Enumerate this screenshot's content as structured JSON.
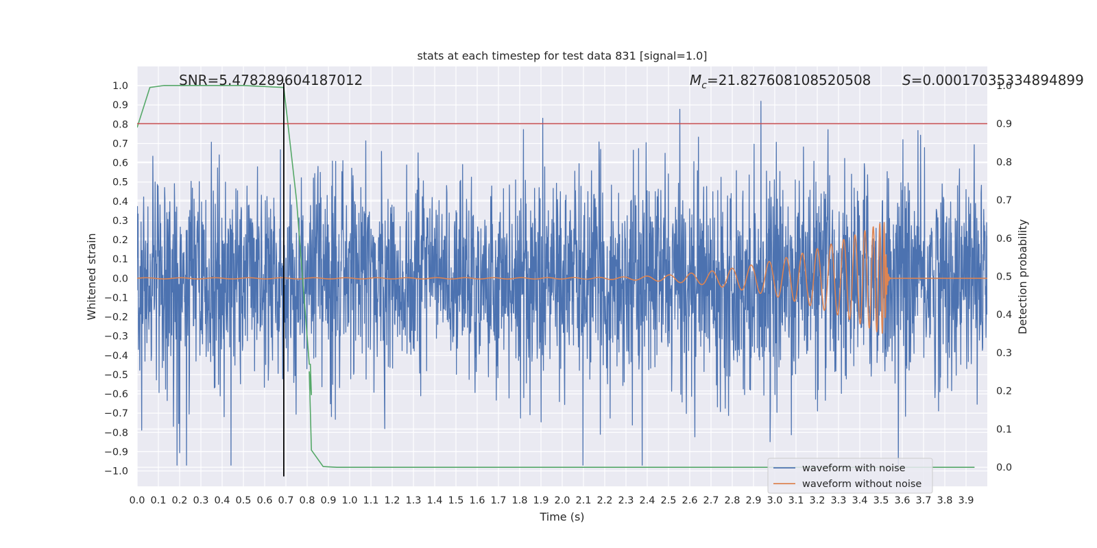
{
  "chart_data": {
    "type": "line",
    "title": "stats at each timestep for test data 831 [signal=1.0]",
    "xlabel": "Time (s)",
    "ylabel": "Whitened strain",
    "y2label": "Detection probability",
    "xlim": [
      0.0,
      4.0
    ],
    "ylim": [
      -1.08,
      1.1
    ],
    "y2lim": [
      -0.05,
      1.05
    ],
    "xticks": [
      "0.0",
      "0.1",
      "0.2",
      "0.3",
      "0.4",
      "0.5",
      "0.6",
      "0.7",
      "0.8",
      "0.9",
      "1.0",
      "1.1",
      "1.2",
      "1.3",
      "1.4",
      "1.5",
      "1.6",
      "1.7",
      "1.8",
      "1.9",
      "2.0",
      "2.1",
      "2.2",
      "2.3",
      "2.4",
      "2.5",
      "2.6",
      "2.7",
      "2.8",
      "2.9",
      "3.0",
      "3.1",
      "3.2",
      "3.3",
      "3.4",
      "3.5",
      "3.6",
      "3.7",
      "3.8",
      "3.9"
    ],
    "yticks": [
      "-1.0",
      "-0.9",
      "-0.8",
      "-0.7",
      "-0.6",
      "-0.5",
      "-0.4",
      "-0.3",
      "-0.2",
      "-0.1",
      "0.0",
      "0.1",
      "0.2",
      "0.3",
      "0.4",
      "0.5",
      "0.6",
      "0.7",
      "0.8",
      "0.9",
      "1.0"
    ],
    "y2ticks": [
      "0.0",
      "0.1",
      "0.2",
      "0.3",
      "0.4",
      "0.5",
      "0.6",
      "0.7",
      "0.8",
      "0.9",
      "1.0"
    ],
    "annotations": {
      "snr": "SNR=5.478289604187012",
      "mc_symbol": "M",
      "mc_sub": "c",
      "mc_value": "=21.827608108520508",
      "s_symbol": "S",
      "s_value": "=0.00017035334894899"
    },
    "threshold": {
      "value": 0.9,
      "axis": "y2",
      "color": "#c44e52"
    },
    "marker_line": {
      "x": 0.69,
      "y_from": -1.0,
      "y_to": 1.0,
      "color": "#000000"
    },
    "series": [
      {
        "name": "waveform with noise",
        "color": "#4c72b0",
        "axis": "y",
        "kind": "noise",
        "sigma": 0.27,
        "n_points": 2600,
        "x_range": [
          0.0,
          4.0
        ]
      },
      {
        "name": "waveform without noise",
        "color": "#dd8452",
        "axis": "y",
        "kind": "chirp",
        "merger_time": 3.52,
        "peak_amplitude": 0.29
      },
      {
        "name": "detection probability",
        "color": "#55a868",
        "axis": "y2",
        "kind": "polyline",
        "points": [
          [
            0.0,
            0.89
          ],
          [
            0.06,
            0.995
          ],
          [
            0.125,
            1.0
          ],
          [
            0.3,
            1.0
          ],
          [
            0.5,
            1.0
          ],
          [
            0.69,
            0.995
          ],
          [
            0.75,
            0.7
          ],
          [
            0.81,
            0.27
          ],
          [
            0.81,
            0.27
          ],
          [
            0.81,
            0.27
          ],
          [
            0.815,
            0.27
          ],
          [
            0.82,
            0.19
          ],
          [
            0.81,
            0.25
          ],
          [
            0.82,
            0.045
          ],
          [
            0.875,
            0.002
          ],
          [
            0.94,
            0.0
          ],
          [
            1.5,
            0.0
          ],
          [
            2.5,
            0.0
          ],
          [
            3.5,
            0.0
          ],
          [
            3.94,
            0.0
          ]
        ]
      }
    ],
    "legend": {
      "position": "lower-right",
      "entries": [
        "waveform with noise",
        "waveform without noise"
      ]
    },
    "grid": true,
    "background": "#eaeaf2"
  }
}
